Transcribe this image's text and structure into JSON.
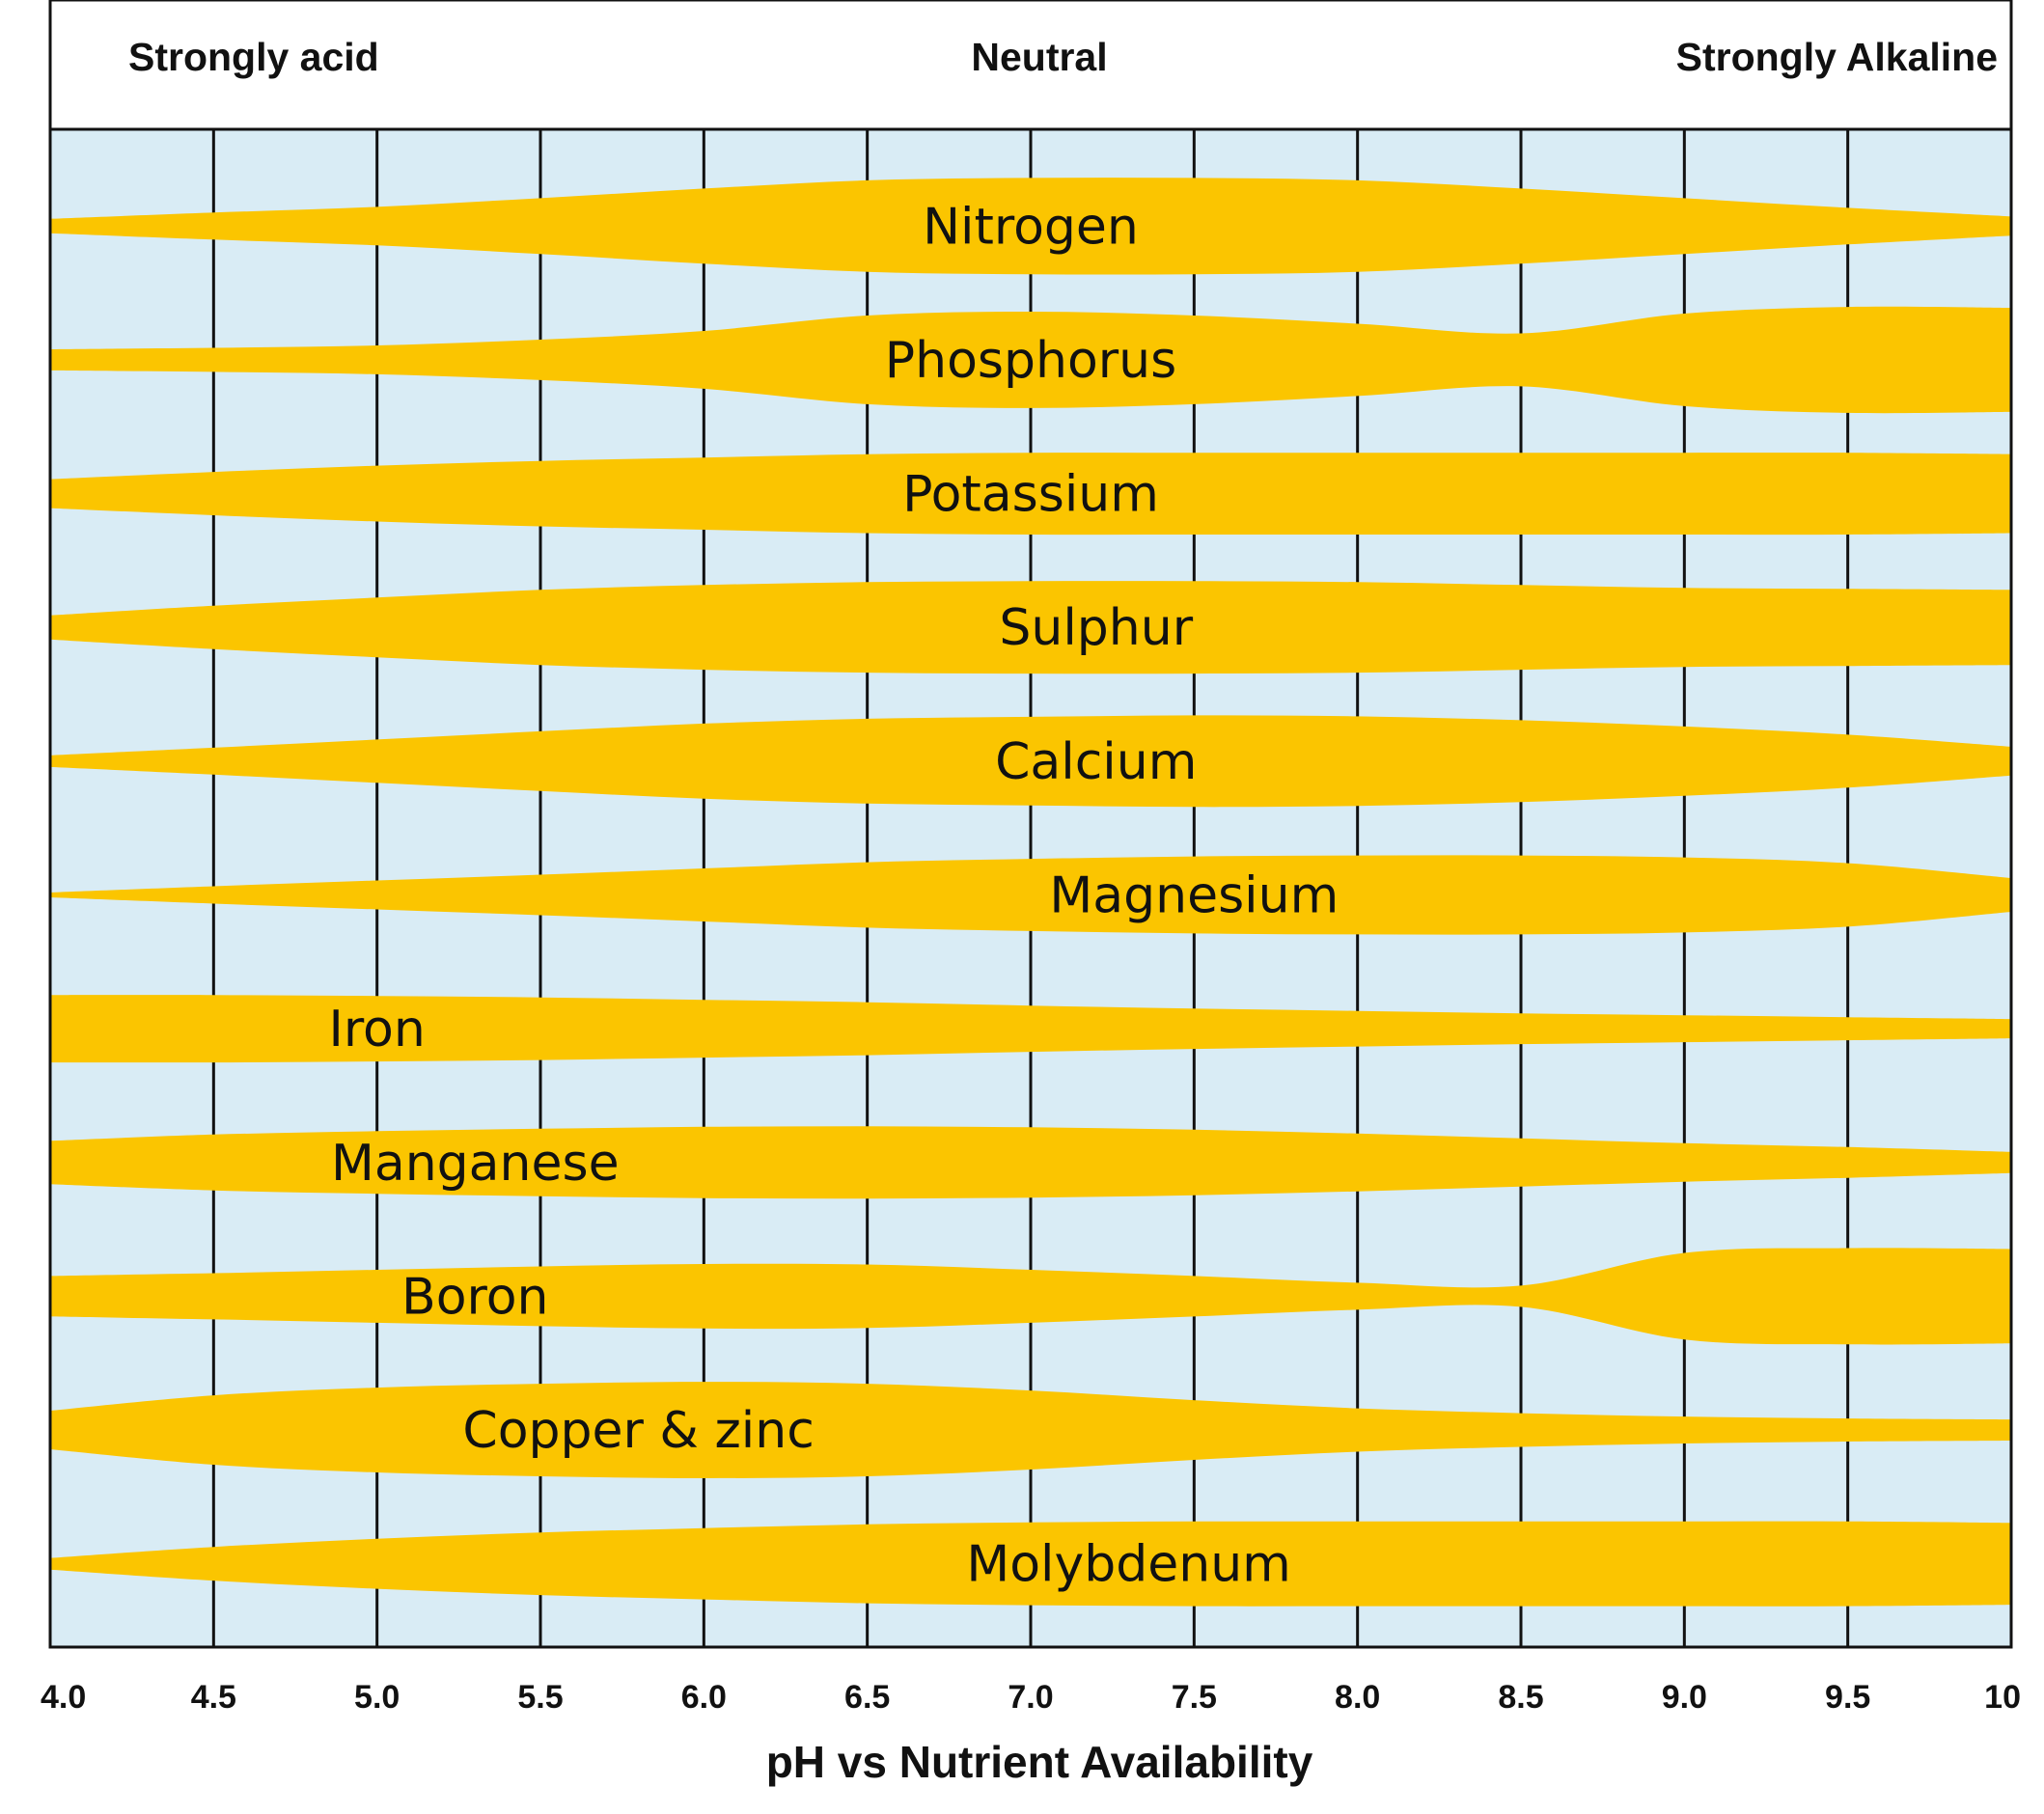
{
  "chart_data": {
    "type": "area",
    "title": "pH vs Nutrient Availability",
    "xlabel": "",
    "ylabel": "",
    "xlim": [
      4.0,
      10
    ],
    "header": {
      "left": "Strongly acid",
      "center": "Neutral",
      "right": "Strongly Alkaline"
    },
    "x_ticks": [
      "4.0",
      "4.5",
      "5.0",
      "5.5",
      "6.0",
      "6.5",
      "7.0",
      "7.5",
      "8.0",
      "8.5",
      "9.0",
      "9.5",
      "10"
    ],
    "grid": true,
    "colors": {
      "band": "#fbc500",
      "background": "#d9ecf5",
      "grid": "#111111"
    },
    "series": [
      {
        "name": "Nitrogen",
        "label_x": 7.0,
        "availability": [
          [
            4.0,
            0.15
          ],
          [
            4.5,
            0.28
          ],
          [
            5.0,
            0.4
          ],
          [
            5.5,
            0.58
          ],
          [
            6.0,
            0.78
          ],
          [
            6.5,
            0.95
          ],
          [
            7.0,
            1.0
          ],
          [
            7.5,
            1.0
          ],
          [
            8.0,
            0.95
          ],
          [
            8.5,
            0.78
          ],
          [
            9.0,
            0.58
          ],
          [
            9.5,
            0.38
          ],
          [
            10,
            0.2
          ]
        ]
      },
      {
        "name": "Phosphorus",
        "label_x": 7.0,
        "availability": [
          [
            4.0,
            0.22
          ],
          [
            4.5,
            0.25
          ],
          [
            5.0,
            0.3
          ],
          [
            5.5,
            0.42
          ],
          [
            6.0,
            0.6
          ],
          [
            6.5,
            0.92
          ],
          [
            7.0,
            1.0
          ],
          [
            7.5,
            0.92
          ],
          [
            8.0,
            0.75
          ],
          [
            8.5,
            0.55
          ],
          [
            9.0,
            0.96
          ],
          [
            9.5,
            1.1
          ],
          [
            10,
            1.08
          ]
        ]
      },
      {
        "name": "Potassium",
        "label_x": 7.0,
        "availability": [
          [
            4.0,
            0.3
          ],
          [
            4.5,
            0.45
          ],
          [
            5.0,
            0.58
          ],
          [
            5.5,
            0.68
          ],
          [
            6.0,
            0.75
          ],
          [
            6.5,
            0.82
          ],
          [
            7.0,
            0.85
          ],
          [
            7.5,
            0.85
          ],
          [
            8.0,
            0.85
          ],
          [
            8.5,
            0.85
          ],
          [
            9.0,
            0.85
          ],
          [
            9.5,
            0.85
          ],
          [
            10,
            0.82
          ]
        ]
      },
      {
        "name": "Sulphur",
        "label_x": 7.2,
        "availability": [
          [
            4.0,
            0.25
          ],
          [
            4.5,
            0.45
          ],
          [
            5.0,
            0.62
          ],
          [
            5.5,
            0.78
          ],
          [
            6.0,
            0.88
          ],
          [
            6.5,
            0.94
          ],
          [
            7.0,
            0.96
          ],
          [
            7.5,
            0.96
          ],
          [
            8.0,
            0.94
          ],
          [
            8.5,
            0.88
          ],
          [
            9.0,
            0.82
          ],
          [
            9.5,
            0.8
          ],
          [
            10,
            0.78
          ]
        ]
      },
      {
        "name": "Calcium",
        "label_x": 7.2,
        "availability": [
          [
            4.0,
            0.12
          ],
          [
            4.5,
            0.28
          ],
          [
            5.0,
            0.45
          ],
          [
            5.5,
            0.62
          ],
          [
            6.0,
            0.78
          ],
          [
            6.5,
            0.88
          ],
          [
            7.0,
            0.92
          ],
          [
            7.5,
            0.95
          ],
          [
            8.0,
            0.93
          ],
          [
            8.5,
            0.85
          ],
          [
            9.0,
            0.72
          ],
          [
            9.5,
            0.55
          ],
          [
            10,
            0.3
          ]
        ]
      },
      {
        "name": "Magnesium",
        "label_x": 7.5,
        "availability": [
          [
            4.0,
            0.05
          ],
          [
            4.5,
            0.18
          ],
          [
            5.0,
            0.3
          ],
          [
            5.5,
            0.42
          ],
          [
            6.0,
            0.55
          ],
          [
            6.5,
            0.68
          ],
          [
            7.0,
            0.75
          ],
          [
            7.5,
            0.8
          ],
          [
            8.0,
            0.82
          ],
          [
            8.5,
            0.82
          ],
          [
            9.0,
            0.78
          ],
          [
            9.5,
            0.66
          ],
          [
            10,
            0.35
          ]
        ]
      },
      {
        "name": "Iron",
        "label_x": 5.0,
        "availability": [
          [
            4.0,
            0.7
          ],
          [
            4.5,
            0.7
          ],
          [
            5.0,
            0.68
          ],
          [
            5.5,
            0.65
          ],
          [
            6.0,
            0.6
          ],
          [
            6.5,
            0.55
          ],
          [
            7.0,
            0.48
          ],
          [
            7.5,
            0.42
          ],
          [
            8.0,
            0.37
          ],
          [
            8.5,
            0.32
          ],
          [
            9.0,
            0.28
          ],
          [
            9.5,
            0.24
          ],
          [
            10,
            0.2
          ]
        ]
      },
      {
        "name": "Manganese",
        "label_x": 5.3,
        "availability": [
          [
            4.0,
            0.45
          ],
          [
            4.5,
            0.58
          ],
          [
            5.0,
            0.65
          ],
          [
            5.5,
            0.7
          ],
          [
            6.0,
            0.74
          ],
          [
            6.5,
            0.75
          ],
          [
            7.0,
            0.73
          ],
          [
            7.5,
            0.68
          ],
          [
            8.0,
            0.6
          ],
          [
            8.5,
            0.5
          ],
          [
            9.0,
            0.4
          ],
          [
            9.5,
            0.32
          ],
          [
            10,
            0.22
          ]
        ]
      },
      {
        "name": "Boron",
        "label_x": 5.3,
        "availability": [
          [
            4.0,
            0.42
          ],
          [
            4.5,
            0.48
          ],
          [
            5.0,
            0.55
          ],
          [
            5.5,
            0.62
          ],
          [
            6.0,
            0.67
          ],
          [
            6.5,
            0.66
          ],
          [
            7.0,
            0.55
          ],
          [
            7.5,
            0.42
          ],
          [
            8.0,
            0.28
          ],
          [
            8.5,
            0.22
          ],
          [
            9.0,
            0.9
          ],
          [
            9.5,
            1.0
          ],
          [
            10,
            0.98
          ]
        ]
      },
      {
        "name": "Copper & zinc",
        "label_x": 5.8,
        "availability": [
          [
            4.0,
            0.4
          ],
          [
            4.5,
            0.72
          ],
          [
            5.0,
            0.88
          ],
          [
            5.5,
            0.96
          ],
          [
            6.0,
            1.0
          ],
          [
            6.5,
            0.96
          ],
          [
            7.0,
            0.82
          ],
          [
            7.5,
            0.62
          ],
          [
            8.0,
            0.45
          ],
          [
            8.5,
            0.35
          ],
          [
            9.0,
            0.28
          ],
          [
            9.5,
            0.24
          ],
          [
            10,
            0.22
          ]
        ]
      },
      {
        "name": "Molybdenum",
        "label_x": 7.3,
        "availability": [
          [
            4.0,
            0.12
          ],
          [
            4.5,
            0.35
          ],
          [
            5.0,
            0.52
          ],
          [
            5.5,
            0.65
          ],
          [
            6.0,
            0.74
          ],
          [
            6.5,
            0.82
          ],
          [
            7.0,
            0.86
          ],
          [
            7.5,
            0.88
          ],
          [
            8.0,
            0.88
          ],
          [
            8.5,
            0.88
          ],
          [
            9.0,
            0.88
          ],
          [
            9.5,
            0.88
          ],
          [
            10,
            0.85
          ]
        ]
      }
    ]
  }
}
